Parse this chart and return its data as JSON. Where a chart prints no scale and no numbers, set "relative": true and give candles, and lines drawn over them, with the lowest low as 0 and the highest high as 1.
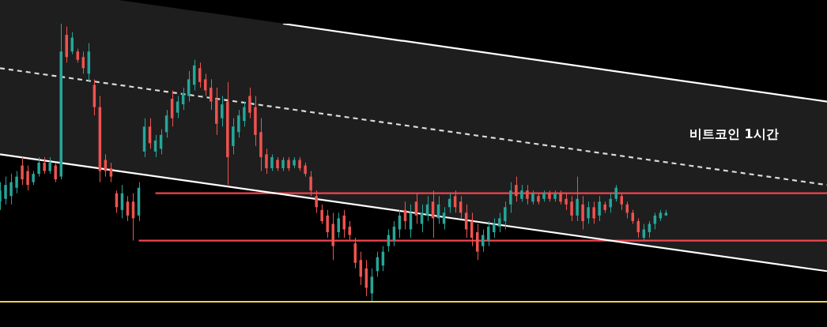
{
  "chart_data": {
    "type": "candlestick",
    "title": "비트코인 1시간",
    "relative": true,
    "legend": false,
    "grid": false,
    "marker": "none",
    "categories": [
      null,
      null,
      null,
      null,
      null,
      null,
      null,
      null,
      null,
      null,
      null,
      null,
      null,
      null,
      null,
      null,
      null,
      null,
      null,
      null,
      null,
      null,
      null,
      null,
      null,
      null,
      null,
      null,
      null,
      null,
      null,
      null,
      null,
      null,
      null,
      null,
      null,
      null,
      null,
      null,
      null,
      null,
      null,
      null,
      null,
      null,
      null,
      null,
      null,
      null,
      null,
      null,
      null,
      null,
      null,
      null,
      null,
      null,
      null,
      null,
      null,
      null,
      null,
      null,
      null,
      null,
      null,
      null,
      null,
      null,
      null,
      null,
      null,
      null,
      null,
      null,
      null,
      null,
      null,
      null,
      null,
      null,
      null,
      null,
      null,
      null,
      null,
      null,
      null,
      null,
      null,
      null,
      null,
      null,
      null,
      null,
      null,
      null,
      null,
      null,
      null,
      null,
      null,
      null,
      null,
      null,
      null,
      null,
      null,
      null,
      null,
      null,
      null,
      null,
      null,
      null,
      null,
      null,
      null,
      null,
      null,
      null,
      null,
      null,
      null,
      null,
      null,
      null,
      null,
      null,
      null,
      null,
      null,
      null,
      null,
      null,
      null,
      null,
      null,
      null,
      null,
      null,
      null,
      null,
      null,
      null,
      null,
      null,
      null,
      null
    ],
    "ohlc": [
      [
        0.36,
        0.43,
        0.33,
        0.4
      ],
      [
        0.37,
        0.45,
        0.35,
        0.42
      ],
      [
        0.38,
        0.46,
        0.35,
        0.43
      ],
      [
        0.41,
        0.47,
        0.39,
        0.45
      ],
      [
        0.49,
        0.52,
        0.42,
        0.44
      ],
      [
        0.47,
        0.49,
        0.4,
        0.42
      ],
      [
        0.43,
        0.47,
        0.42,
        0.46
      ],
      [
        0.46,
        0.52,
        0.45,
        0.5
      ],
      [
        0.5,
        0.52,
        0.46,
        0.47
      ],
      [
        0.47,
        0.52,
        0.46,
        0.5
      ],
      [
        0.49,
        0.5,
        0.43,
        0.44
      ],
      [
        0.45,
        1.0,
        0.44,
        0.9
      ],
      [
        0.96,
        0.99,
        0.86,
        0.88
      ],
      [
        0.9,
        0.97,
        0.89,
        0.95
      ],
      [
        0.9,
        0.91,
        0.86,
        0.87
      ],
      [
        0.88,
        0.9,
        0.82,
        0.84
      ],
      [
        0.82,
        0.93,
        0.79,
        0.9
      ],
      [
        0.78,
        0.8,
        0.67,
        0.7
      ],
      [
        0.7,
        0.74,
        0.43,
        0.47
      ],
      [
        0.51,
        0.53,
        0.45,
        0.47
      ],
      [
        0.48,
        0.5,
        0.43,
        0.45
      ],
      [
        0.39,
        0.4,
        0.32,
        0.34
      ],
      [
        0.33,
        0.42,
        0.3,
        0.39
      ],
      [
        0.36,
        0.38,
        0.29,
        0.31
      ],
      [
        0.36,
        0.39,
        0.22,
        0.3
      ],
      [
        0.31,
        0.43,
        0.29,
        0.41
      ],
      [
        0.54,
        0.66,
        0.52,
        0.63
      ],
      [
        0.63,
        0.66,
        0.55,
        0.57
      ],
      [
        0.54,
        0.6,
        0.52,
        0.58
      ],
      [
        0.55,
        0.62,
        0.53,
        0.6
      ],
      [
        0.61,
        0.69,
        0.59,
        0.67
      ],
      [
        0.73,
        0.76,
        0.63,
        0.66
      ],
      [
        0.68,
        0.74,
        0.66,
        0.72
      ],
      [
        0.71,
        0.77,
        0.69,
        0.75
      ],
      [
        0.74,
        0.83,
        0.72,
        0.8
      ],
      [
        0.78,
        0.87,
        0.76,
        0.85
      ],
      [
        0.84,
        0.86,
        0.77,
        0.79
      ],
      [
        0.8,
        0.82,
        0.74,
        0.76
      ],
      [
        0.77,
        0.8,
        0.69,
        0.72
      ],
      [
        0.73,
        0.77,
        0.6,
        0.64
      ],
      [
        0.66,
        0.74,
        0.63,
        0.71
      ],
      [
        0.72,
        0.79,
        0.42,
        0.52
      ],
      [
        0.56,
        0.66,
        0.53,
        0.63
      ],
      [
        0.61,
        0.69,
        0.59,
        0.67
      ],
      [
        0.65,
        0.72,
        0.63,
        0.7
      ],
      [
        0.74,
        0.77,
        0.66,
        0.68
      ],
      [
        0.7,
        0.74,
        0.56,
        0.6
      ],
      [
        0.61,
        0.66,
        0.47,
        0.52
      ],
      [
        0.53,
        0.55,
        0.46,
        0.48
      ],
      [
        0.48,
        0.53,
        0.47,
        0.52
      ],
      [
        0.51,
        0.52,
        0.47,
        0.48
      ],
      [
        0.48,
        0.52,
        0.47,
        0.51
      ],
      [
        0.51,
        0.52,
        0.47,
        0.48
      ],
      [
        0.49,
        0.52,
        0.48,
        0.51
      ],
      [
        0.51,
        0.52,
        0.47,
        0.48
      ],
      [
        0.49,
        0.5,
        0.45,
        0.46
      ],
      [
        0.45,
        0.47,
        0.38,
        0.4
      ],
      [
        0.38,
        0.4,
        0.32,
        0.34
      ],
      [
        0.33,
        0.35,
        0.28,
        0.29
      ],
      [
        0.31,
        0.33,
        0.23,
        0.25
      ],
      [
        0.28,
        0.32,
        0.15,
        0.2
      ],
      [
        0.25,
        0.32,
        0.23,
        0.3
      ],
      [
        0.31,
        0.33,
        0.23,
        0.26
      ],
      [
        0.27,
        0.29,
        0.22,
        0.24
      ],
      [
        0.21,
        0.23,
        0.12,
        0.14
      ],
      [
        0.15,
        0.18,
        0.06,
        0.09
      ],
      [
        0.12,
        0.15,
        0.02,
        0.05
      ],
      [
        0.03,
        0.12,
        0.0,
        0.09
      ],
      [
        0.11,
        0.18,
        0.09,
        0.16
      ],
      [
        0.13,
        0.2,
        0.11,
        0.18
      ],
      [
        0.2,
        0.26,
        0.18,
        0.24
      ],
      [
        0.22,
        0.29,
        0.2,
        0.27
      ],
      [
        0.26,
        0.33,
        0.23,
        0.31
      ],
      [
        0.33,
        0.36,
        0.26,
        0.29
      ],
      [
        0.26,
        0.35,
        0.23,
        0.32
      ],
      [
        0.36,
        0.39,
        0.28,
        0.31
      ],
      [
        0.28,
        0.35,
        0.25,
        0.32
      ],
      [
        0.31,
        0.38,
        0.29,
        0.35
      ],
      [
        0.36,
        0.4,
        0.23,
        0.3
      ],
      [
        0.3,
        0.38,
        0.28,
        0.35
      ],
      [
        0.28,
        0.34,
        0.26,
        0.32
      ],
      [
        0.34,
        0.39,
        0.32,
        0.37
      ],
      [
        0.38,
        0.4,
        0.32,
        0.34
      ],
      [
        0.36,
        0.38,
        0.3,
        0.32
      ],
      [
        0.32,
        0.35,
        0.23,
        0.26
      ],
      [
        0.29,
        0.32,
        0.2,
        0.23
      ],
      [
        0.25,
        0.28,
        0.15,
        0.18
      ],
      [
        0.2,
        0.26,
        0.18,
        0.24
      ],
      [
        0.22,
        0.29,
        0.2,
        0.27
      ],
      [
        0.25,
        0.3,
        0.23,
        0.28
      ],
      [
        0.27,
        0.32,
        0.25,
        0.3
      ],
      [
        0.29,
        0.36,
        0.26,
        0.34
      ],
      [
        0.35,
        0.43,
        0.32,
        0.4
      ],
      [
        0.42,
        0.45,
        0.36,
        0.38
      ],
      [
        0.37,
        0.42,
        0.36,
        0.4
      ],
      [
        0.4,
        0.42,
        0.35,
        0.37
      ],
      [
        0.36,
        0.4,
        0.35,
        0.39
      ],
      [
        0.38,
        0.39,
        0.35,
        0.36
      ],
      [
        0.37,
        0.4,
        0.36,
        0.39
      ],
      [
        0.39,
        0.4,
        0.36,
        0.37
      ],
      [
        0.37,
        0.4,
        0.36,
        0.39
      ],
      [
        0.39,
        0.4,
        0.35,
        0.36
      ],
      [
        0.37,
        0.39,
        0.33,
        0.35
      ],
      [
        0.36,
        0.38,
        0.29,
        0.31
      ],
      [
        0.31,
        0.45,
        0.29,
        0.37
      ],
      [
        0.35,
        0.38,
        0.26,
        0.29
      ],
      [
        0.3,
        0.36,
        0.28,
        0.34
      ],
      [
        0.34,
        0.36,
        0.28,
        0.3
      ],
      [
        0.31,
        0.38,
        0.29,
        0.36
      ],
      [
        0.35,
        0.36,
        0.32,
        0.33
      ],
      [
        0.34,
        0.39,
        0.32,
        0.37
      ],
      [
        0.37,
        0.42,
        0.36,
        0.41
      ],
      [
        0.38,
        0.39,
        0.33,
        0.35
      ],
      [
        0.35,
        0.36,
        0.3,
        0.32
      ],
      [
        0.32,
        0.33,
        0.28,
        0.29
      ],
      [
        0.29,
        0.3,
        0.23,
        0.25
      ],
      [
        0.23,
        0.28,
        0.22,
        0.26
      ],
      [
        0.25,
        0.29,
        0.23,
        0.28
      ],
      [
        0.28,
        0.32,
        0.26,
        0.31
      ],
      [
        0.3,
        0.33,
        0.29,
        0.32
      ],
      [
        0.31,
        0.33,
        0.31,
        0.32
      ],
      null,
      null,
      null,
      null,
      null,
      null,
      null,
      null,
      null,
      null,
      null,
      null,
      null,
      null,
      null,
      null,
      null,
      null,
      null,
      null,
      null,
      null,
      null,
      null,
      null,
      null,
      null,
      null,
      null
    ],
    "series": [
      {
        "type": "line",
        "color": "#ffffff",
        "line_style": "solid",
        "values": [
          null,
          null,
          null,
          null,
          null,
          null,
          null,
          null,
          null,
          null,
          null,
          null,
          null,
          null,
          null,
          null,
          null,
          null,
          null,
          null,
          null,
          null,
          null,
          null,
          null,
          null,
          null,
          null,
          null,
          null,
          null,
          null,
          null,
          null,
          null,
          null,
          null,
          null,
          null,
          null,
          null,
          null,
          null,
          null,
          null,
          null,
          null,
          null,
          null,
          null,
          null,
          1.0,
          null,
          null,
          null,
          null,
          null,
          null,
          null,
          null,
          null,
          null,
          null,
          null,
          null,
          null,
          null,
          null,
          null,
          null,
          null,
          null,
          null,
          null,
          null,
          null,
          null,
          null,
          null,
          null,
          null,
          null,
          null,
          null,
          null,
          null,
          null,
          null,
          null,
          null,
          null,
          null,
          null,
          null,
          null,
          null,
          null,
          null,
          null,
          null,
          null,
          null,
          null,
          null,
          null,
          null,
          null,
          null,
          null,
          null,
          null,
          null,
          null,
          null,
          null,
          null,
          null,
          null,
          null,
          null,
          null,
          null,
          null,
          null,
          null,
          null,
          null,
          null,
          null,
          null,
          null,
          null,
          null,
          null,
          null,
          null,
          null,
          null,
          null,
          null,
          null,
          null,
          null,
          null,
          null,
          null,
          null,
          null,
          null,
          0.72
        ]
      },
      {
        "type": "line",
        "color": "#d9d9d9",
        "line_style": "dashed",
        "values": [
          0.84,
          null,
          null,
          null,
          null,
          null,
          null,
          null,
          null,
          null,
          null,
          null,
          null,
          null,
          null,
          null,
          null,
          null,
          null,
          null,
          null,
          null,
          null,
          null,
          null,
          null,
          null,
          null,
          null,
          null,
          null,
          null,
          null,
          null,
          null,
          null,
          null,
          null,
          null,
          null,
          null,
          null,
          null,
          null,
          null,
          null,
          null,
          null,
          null,
          null,
          null,
          null,
          null,
          null,
          null,
          null,
          null,
          null,
          null,
          null,
          null,
          null,
          null,
          null,
          null,
          null,
          null,
          null,
          null,
          null,
          null,
          null,
          null,
          null,
          null,
          null,
          null,
          null,
          null,
          null,
          null,
          null,
          null,
          null,
          null,
          null,
          null,
          null,
          null,
          null,
          null,
          null,
          null,
          null,
          null,
          null,
          null,
          null,
          null,
          null,
          null,
          null,
          null,
          null,
          null,
          null,
          null,
          null,
          null,
          null,
          null,
          null,
          null,
          null,
          null,
          null,
          null,
          null,
          null,
          null,
          null,
          null,
          null,
          null,
          null,
          null,
          null,
          null,
          null,
          null,
          null,
          null,
          null,
          null,
          null,
          null,
          null,
          null,
          null,
          null,
          null,
          null,
          null,
          null,
          null,
          null,
          null,
          null,
          null,
          0.42
        ]
      },
      {
        "type": "line",
        "color": "#ffffff",
        "line_style": "solid",
        "values": [
          0.53,
          null,
          null,
          null,
          null,
          null,
          null,
          null,
          null,
          null,
          null,
          null,
          null,
          null,
          null,
          null,
          null,
          null,
          null,
          null,
          null,
          null,
          null,
          null,
          null,
          null,
          null,
          null,
          null,
          null,
          null,
          null,
          null,
          null,
          null,
          null,
          null,
          null,
          null,
          null,
          null,
          null,
          null,
          null,
          null,
          null,
          null,
          null,
          null,
          null,
          null,
          null,
          null,
          null,
          null,
          null,
          null,
          null,
          null,
          null,
          null,
          null,
          null,
          null,
          null,
          null,
          null,
          null,
          null,
          null,
          null,
          null,
          null,
          null,
          null,
          null,
          null,
          null,
          null,
          null,
          null,
          null,
          null,
          null,
          null,
          null,
          null,
          null,
          null,
          null,
          null,
          null,
          null,
          null,
          null,
          null,
          null,
          null,
          null,
          null,
          null,
          null,
          null,
          null,
          null,
          null,
          null,
          null,
          null,
          null,
          null,
          null,
          null,
          null,
          null,
          null,
          null,
          null,
          null,
          null,
          null,
          null,
          null,
          null,
          null,
          null,
          null,
          null,
          null,
          null,
          null,
          null,
          null,
          null,
          null,
          null,
          null,
          null,
          null,
          null,
          null,
          null,
          null,
          null,
          null,
          null,
          null,
          null,
          null,
          0.11
        ]
      },
      {
        "type": "line",
        "color": "#f0454f",
        "line_style": "solid",
        "values": [
          null,
          null,
          null,
          null,
          null,
          null,
          null,
          null,
          null,
          null,
          null,
          null,
          null,
          null,
          null,
          null,
          null,
          null,
          null,
          null,
          null,
          null,
          null,
          null,
          null,
          null,
          null,
          null,
          0.39,
          null,
          null,
          null,
          null,
          null,
          null,
          null,
          null,
          null,
          null,
          null,
          null,
          null,
          null,
          null,
          null,
          null,
          null,
          null,
          null,
          null,
          null,
          null,
          null,
          null,
          null,
          null,
          null,
          null,
          null,
          null,
          null,
          null,
          null,
          null,
          null,
          null,
          null,
          null,
          null,
          null,
          null,
          null,
          null,
          null,
          null,
          null,
          null,
          null,
          null,
          null,
          null,
          null,
          null,
          null,
          null,
          null,
          null,
          null,
          null,
          null,
          null,
          null,
          null,
          null,
          null,
          null,
          null,
          null,
          null,
          null,
          null,
          null,
          null,
          null,
          null,
          null,
          null,
          null,
          null,
          null,
          null,
          null,
          null,
          null,
          null,
          null,
          null,
          null,
          null,
          null,
          null,
          null,
          null,
          null,
          null,
          null,
          null,
          null,
          null,
          null,
          null,
          null,
          null,
          null,
          null,
          null,
          null,
          null,
          null,
          null,
          null,
          null,
          null,
          null,
          null,
          null,
          null,
          null,
          null,
          0.39
        ]
      },
      {
        "type": "line",
        "color": "#f0454f",
        "line_style": "solid",
        "values": [
          null,
          null,
          null,
          null,
          null,
          null,
          null,
          null,
          null,
          null,
          null,
          null,
          null,
          null,
          null,
          null,
          null,
          null,
          null,
          null,
          null,
          null,
          null,
          null,
          null,
          0.22,
          null,
          null,
          null,
          null,
          null,
          null,
          null,
          null,
          null,
          null,
          null,
          null,
          null,
          null,
          null,
          null,
          null,
          null,
          null,
          null,
          null,
          null,
          null,
          null,
          null,
          null,
          null,
          null,
          null,
          null,
          null,
          null,
          null,
          null,
          null,
          null,
          null,
          null,
          null,
          null,
          null,
          null,
          null,
          null,
          null,
          null,
          null,
          null,
          null,
          null,
          null,
          null,
          null,
          null,
          null,
          null,
          null,
          null,
          null,
          null,
          null,
          null,
          null,
          null,
          null,
          null,
          null,
          null,
          null,
          null,
          null,
          null,
          null,
          null,
          null,
          null,
          null,
          null,
          null,
          null,
          null,
          null,
          null,
          null,
          null,
          null,
          null,
          null,
          null,
          null,
          null,
          null,
          null,
          null,
          null,
          null,
          null,
          null,
          null,
          null,
          null,
          null,
          null,
          null,
          null,
          null,
          null,
          null,
          null,
          null,
          null,
          null,
          null,
          null,
          null,
          null,
          null,
          null,
          null,
          null,
          null,
          null,
          null,
          0.22
        ]
      }
    ],
    "ref_lines": [
      {
        "axis": "y",
        "value": 0.0,
        "color": "#e8d44d",
        "line_style": "solid"
      }
    ]
  }
}
